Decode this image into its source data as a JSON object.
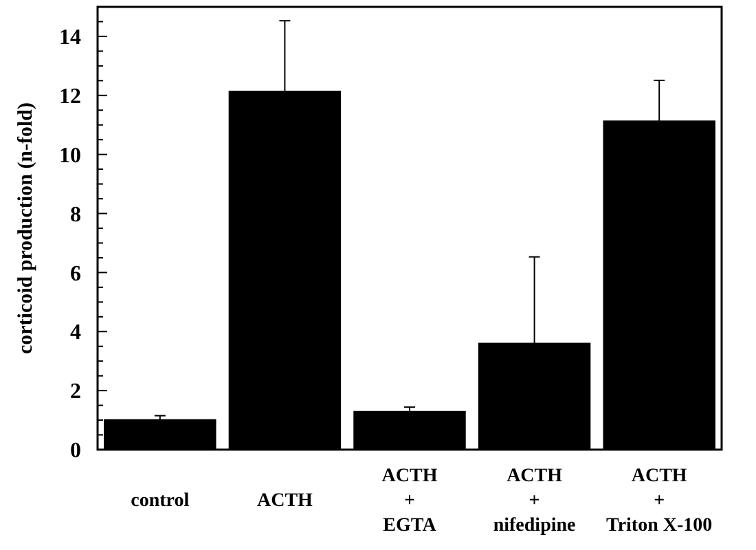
{
  "chart_data": {
    "type": "bar",
    "ylabel": "corticoid production (n-fold)",
    "categories": [
      "control",
      "ACTH",
      "ACTH\n+\nEGTA",
      "ACTH\n+\nnifedipine",
      "ACTH\n+\nTriton X-100"
    ],
    "values": [
      1.03,
      12.16,
      1.31,
      3.62,
      11.15
    ],
    "color": "#000000",
    "errors": [
      0.12,
      2.37,
      0.13,
      2.91,
      1.36
    ],
    "ylim": [
      0,
      15
    ],
    "yticks": [
      0,
      {
        "value": 0.5,
        "label": null
      },
      {
        "value": 1,
        "label": null
      },
      {
        "value": 1.5,
        "label": null
      },
      2,
      {
        "value": 2.5,
        "label": null
      },
      {
        "value": 3,
        "label": null
      },
      {
        "value": 3.5,
        "label": null
      },
      4,
      {
        "value": 4.5,
        "label": null
      },
      {
        "value": 5,
        "label": null
      },
      {
        "value": 5.5,
        "label": null
      },
      6,
      {
        "value": 6.5,
        "label": null
      },
      {
        "value": 7,
        "label": null
      },
      {
        "value": 7.5,
        "label": null
      },
      8,
      {
        "value": 8.5,
        "label": null
      },
      {
        "value": 9,
        "label": null
      },
      {
        "value": 9.5,
        "label": null
      },
      10,
      {
        "value": 10.5,
        "label": null
      },
      {
        "value": 11,
        "label": null
      },
      {
        "value": 11.5,
        "label": null
      },
      12,
      {
        "value": 12.5,
        "label": null
      },
      {
        "value": 13,
        "label": null
      },
      {
        "value": 13.5,
        "label": null
      },
      14,
      {
        "value": 14.5,
        "label": null
      }
    ],
    "grid": false
  }
}
